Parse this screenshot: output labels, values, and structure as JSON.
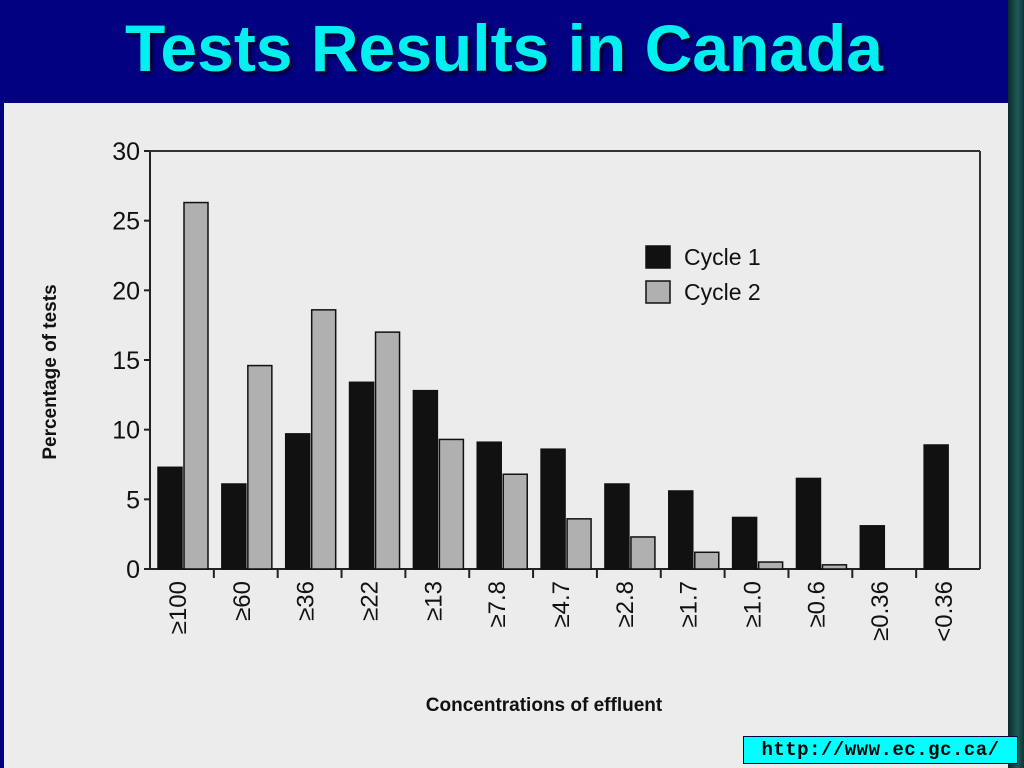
{
  "slide": {
    "title": "Tests Results in Canada",
    "source_link": "http://www.ec.gc.ca/",
    "colors": {
      "background": "#000080",
      "title": "#00f0f0",
      "chart_background": "#ececec",
      "source_box": "#00ffff"
    }
  },
  "chart_data": {
    "type": "bar",
    "categories": [
      "≥100",
      "≥60",
      "≥36",
      "≥22",
      "≥13",
      "≥7.8",
      "≥4.7",
      "≥2.8",
      "≥1.7",
      "≥1.0",
      "≥0.6",
      "≥0.36",
      "<0.36"
    ],
    "series": [
      {
        "name": "Cycle 1",
        "color": "#111111",
        "values": [
          7.3,
          6.1,
          9.7,
          13.4,
          12.8,
          9.1,
          8.6,
          6.1,
          5.6,
          3.7,
          6.5,
          3.1,
          8.9
        ]
      },
      {
        "name": "Cycle 2",
        "color": "#b0b0b0",
        "values": [
          26.3,
          14.6,
          18.6,
          17.0,
          9.3,
          6.8,
          3.6,
          2.3,
          1.2,
          0.5,
          0.3,
          0,
          null
        ]
      }
    ],
    "xlabel": "Concentrations of effluent",
    "ylabel": "Percentage of tests",
    "ylim": [
      0,
      30
    ],
    "yticks": [
      0,
      5,
      10,
      15,
      20,
      25,
      30
    ],
    "grid": false,
    "legend": "top-right"
  }
}
